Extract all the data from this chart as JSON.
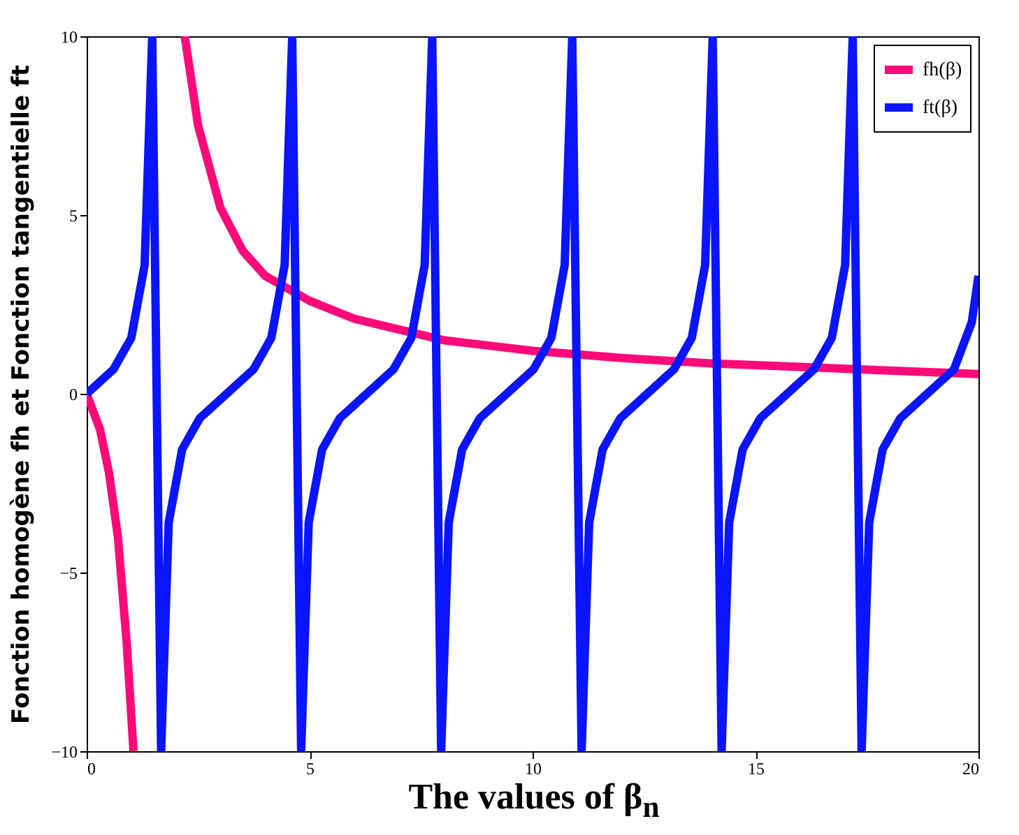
{
  "chart_data": {
    "type": "line",
    "xlabel": "The values of β$_{n}$",
    "ylabel": "Fonction homogène fh et Fonction tangentielle ft",
    "xlim": [
      0,
      20
    ],
    "ylim": [
      -10,
      10
    ],
    "xticks": [
      0,
      5,
      10,
      15,
      20
    ],
    "yticks": [
      -10,
      -5,
      0,
      5,
      10
    ],
    "grid": false,
    "legend": "top right",
    "marker": "none",
    "line_style": "solid",
    "series": [
      {
        "name": "fh(β)",
        "color": "#ff0a78",
        "x": [
          0,
          0.3,
          0.5,
          0.7,
          0.9,
          1.05
        ],
        "values": [
          0,
          -1,
          -2.2,
          -4,
          -7,
          -10
        ]
      },
      {
        "color": "#ff0a78",
        "x": [
          2.2,
          2.5,
          3,
          3.5,
          4,
          5,
          6,
          7,
          8,
          9,
          10,
          12,
          14,
          16,
          18,
          20
        ],
        "values": [
          10,
          7.5,
          5.2,
          4,
          3.3,
          2.6,
          2.1,
          1.8,
          1.5,
          1.35,
          1.2,
          1,
          0.85,
          0.75,
          0.65,
          0.55
        ]
      },
      {
        "name": "ft(β)",
        "color": "#0a14ff",
        "x": [
          0,
          0.6,
          1,
          1.3,
          1.47,
          1.67,
          1.84,
          2.14,
          2.54,
          3.14,
          3.74,
          4.14,
          4.44,
          4.61,
          4.81,
          4.98,
          5.28,
          5.68,
          6.28,
          6.88,
          7.28,
          7.58,
          7.75,
          7.95,
          8.12,
          8.42,
          8.82,
          9.42,
          10.02,
          10.42,
          10.72,
          10.89,
          11.1,
          11.27,
          11.57,
          11.97,
          12.57,
          13.17,
          13.57,
          13.87,
          14.04,
          14.24,
          14.41,
          14.71,
          15.11,
          15.71,
          16.31,
          16.71,
          17.01,
          17.18,
          17.38,
          17.55,
          17.85,
          18.25,
          18.85,
          19.45,
          19.85,
          20
        ],
        "values": [
          0,
          0.68,
          1.56,
          3.6,
          10,
          -10,
          -3.6,
          -1.56,
          -0.68,
          0,
          0.68,
          1.56,
          3.6,
          10,
          -10,
          -3.6,
          -1.56,
          -0.68,
          0,
          0.68,
          1.56,
          3.6,
          10,
          -10,
          -3.6,
          -1.56,
          -0.68,
          0,
          0.68,
          1.56,
          3.6,
          10,
          -10,
          -3.6,
          -1.56,
          -0.68,
          0,
          0.68,
          1.56,
          3.6,
          10,
          -10,
          -3.6,
          -1.56,
          -0.68,
          0,
          0.68,
          1.56,
          3.6,
          10,
          -10,
          -3.6,
          -1.56,
          -0.68,
          0,
          0.68,
          2,
          3.3
        ]
      }
    ]
  }
}
